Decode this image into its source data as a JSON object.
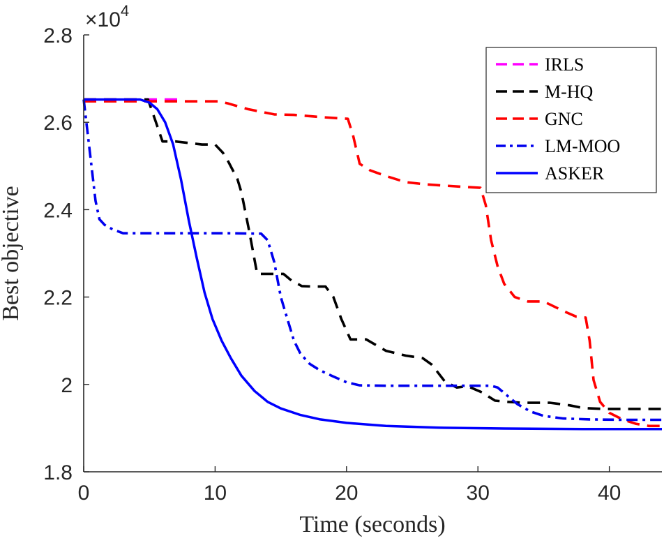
{
  "chart_data": {
    "type": "line",
    "xlabel": "Time (seconds)",
    "ylabel": "Best objective",
    "xlim": [
      0,
      44
    ],
    "ylim": [
      1.8,
      2.8
    ],
    "xticks": [
      0,
      10,
      20,
      30,
      40
    ],
    "yticks": [
      1.8,
      2.0,
      2.2,
      2.4,
      2.6,
      2.8
    ],
    "ytick_labels": [
      "1.8",
      "2",
      "2.2",
      "2.4",
      "2.6",
      "2.8"
    ],
    "y_multiplier_base": "×10",
    "y_multiplier_exp": "4",
    "grid": false,
    "legend_position": "top-right",
    "series": [
      {
        "name": "IRLS",
        "color": "#ff00ff",
        "dash": "dashed",
        "x": [
          0,
          7.3
        ],
        "y": [
          2.652,
          2.652
        ]
      },
      {
        "name": "M-HQ",
        "color": "#000000",
        "dash": "dashed",
        "x": [
          0,
          4.9,
          5.5,
          6.0,
          7.0,
          9.0,
          10.0,
          10.6,
          11.0,
          11.7,
          12.0,
          12.6,
          13.2,
          14.2,
          15.2,
          15.8,
          16.6,
          17.5,
          18.4,
          19.0,
          19.6,
          20.3,
          21.5,
          23.0,
          24.5,
          25.8,
          26.5,
          27.5,
          28.4,
          29.2,
          30.3,
          31.3,
          32.3,
          33.5,
          35.5,
          37.0,
          38.0,
          39.5,
          41.0,
          42.5,
          44.0
        ],
        "y": [
          2.652,
          2.652,
          2.6,
          2.556,
          2.556,
          2.549,
          2.549,
          2.53,
          2.51,
          2.47,
          2.44,
          2.35,
          2.253,
          2.253,
          2.253,
          2.238,
          2.225,
          2.224,
          2.224,
          2.2,
          2.15,
          2.103,
          2.103,
          2.077,
          2.066,
          2.06,
          2.045,
          2.006,
          1.993,
          1.996,
          1.982,
          1.963,
          1.96,
          1.958,
          1.958,
          1.952,
          1.946,
          1.944,
          1.944,
          1.944,
          1.944
        ]
      },
      {
        "name": "GNC",
        "color": "#ff0000",
        "dash": "dashed",
        "x": [
          0,
          10.3,
          11.0,
          12.5,
          14.5,
          16.0,
          18.0,
          19.5,
          20.1,
          20.5,
          21.0,
          21.8,
          23.0,
          24.5,
          26.0,
          27.5,
          29.0,
          30.2,
          30.6,
          31.0,
          31.5,
          32.0,
          32.8,
          33.8,
          35.0,
          36.5,
          37.5,
          38.2,
          38.5,
          38.8,
          39.3,
          40.0,
          41.0,
          42.0,
          43.0,
          44.0
        ],
        "y": [
          2.648,
          2.648,
          2.643,
          2.63,
          2.618,
          2.617,
          2.612,
          2.609,
          2.608,
          2.57,
          2.505,
          2.49,
          2.477,
          2.463,
          2.458,
          2.455,
          2.452,
          2.45,
          2.41,
          2.33,
          2.27,
          2.23,
          2.2,
          2.19,
          2.19,
          2.168,
          2.155,
          2.153,
          2.1,
          2.01,
          1.96,
          1.935,
          1.92,
          1.91,
          1.905,
          1.905
        ]
      },
      {
        "name": "LM-MOO",
        "color": "#0000ee",
        "dash": "dashdot",
        "x": [
          0,
          0.4,
          0.9,
          1.2,
          1.6,
          2.2,
          3.0,
          5.0,
          8.0,
          11.0,
          13.5,
          14.0,
          14.5,
          15.0,
          15.5,
          16.0,
          16.5,
          17.2,
          18.0,
          19.0,
          20.0,
          21.0,
          23.0,
          26.0,
          29.0,
          31.0,
          31.5,
          32.2,
          33.0,
          34.0,
          35.0,
          36.5,
          38.5,
          41.0,
          44.0
        ],
        "y": [
          2.652,
          2.55,
          2.42,
          2.378,
          2.365,
          2.355,
          2.346,
          2.346,
          2.346,
          2.346,
          2.345,
          2.33,
          2.28,
          2.2,
          2.15,
          2.1,
          2.07,
          2.047,
          2.032,
          2.018,
          2.005,
          1.998,
          1.997,
          1.997,
          1.997,
          1.997,
          1.993,
          1.975,
          1.955,
          1.938,
          1.928,
          1.922,
          1.92,
          1.919,
          1.919
        ]
      },
      {
        "name": "ASKER",
        "color": "#0000ff",
        "dash": "solid",
        "x": [
          0,
          3.0,
          4.3,
          5.0,
          5.6,
          6.2,
          6.8,
          7.4,
          8.0,
          8.6,
          9.2,
          9.8,
          10.5,
          11.2,
          12.0,
          13.0,
          14.0,
          15.0,
          16.5,
          18.0,
          20.0,
          23.0,
          27.0,
          32.0,
          38.0,
          44.0
        ],
        "y": [
          2.652,
          2.652,
          2.652,
          2.645,
          2.63,
          2.6,
          2.55,
          2.47,
          2.375,
          2.29,
          2.21,
          2.15,
          2.1,
          2.06,
          2.02,
          1.985,
          1.96,
          1.945,
          1.93,
          1.92,
          1.912,
          1.905,
          1.901,
          1.899,
          1.898,
          1.898
        ]
      }
    ]
  }
}
